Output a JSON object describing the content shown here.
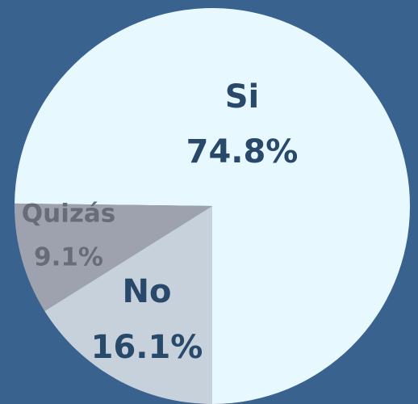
{
  "chart_data": {
    "type": "pie",
    "categories": [
      "Si",
      "Quizás",
      "No"
    ],
    "values": [
      74.8,
      9.1,
      16.1
    ],
    "value_labels": [
      "74.8%",
      "9.1%",
      "16.1%"
    ],
    "colors": [
      "#e8f8ff",
      "#9ea2ae",
      "#c6d1dc"
    ]
  }
}
